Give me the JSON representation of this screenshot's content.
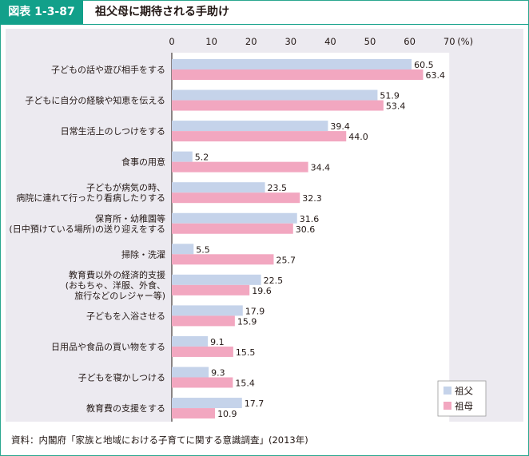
{
  "header": {
    "figure_id": "図表 1-3-87",
    "title": "祖父母に期待される手助け"
  },
  "source": "資料：内閣府「家族と地域における子育てに関する意識調査」(2013年)",
  "chart_data": {
    "type": "bar",
    "orientation": "horizontal",
    "title": "",
    "xlim": [
      0,
      70
    ],
    "ticks": [
      0,
      10,
      20,
      30,
      40,
      50,
      60,
      70
    ],
    "unit": "(%)",
    "legend_position": "bottom-right",
    "categories": [
      [
        "子どもの話や遊び相手をする"
      ],
      [
        "子どもに自分の経験や知恵を伝える"
      ],
      [
        "日常生活上のしつけをする"
      ],
      [
        "食事の用意"
      ],
      [
        "子どもが病気の時、",
        "病院に連れて行ったり看病したりする"
      ],
      [
        "保育所・幼稚園等",
        "(日中預けている場所)の送り迎えをする"
      ],
      [
        "掃除・洗濯"
      ],
      [
        "教育費以外の経済的支援",
        "(おもちゃ、洋服、外食、",
        "旅行などのレジャー等)"
      ],
      [
        "子どもを入浴させる"
      ],
      [
        "日用品や食品の買い物をする"
      ],
      [
        "子どもを寝かしつける"
      ],
      [
        "教育費の支援をする"
      ]
    ],
    "series": [
      {
        "name": "祖父",
        "color": "#c5d3ea",
        "values": [
          60.5,
          51.9,
          39.4,
          5.2,
          23.5,
          31.6,
          5.5,
          22.5,
          17.9,
          9.1,
          9.3,
          17.7
        ]
      },
      {
        "name": "祖母",
        "color": "#f2a7c0",
        "values": [
          63.4,
          53.4,
          44.0,
          34.4,
          32.3,
          30.6,
          25.7,
          19.6,
          15.9,
          15.5,
          15.4,
          10.9
        ]
      }
    ]
  }
}
